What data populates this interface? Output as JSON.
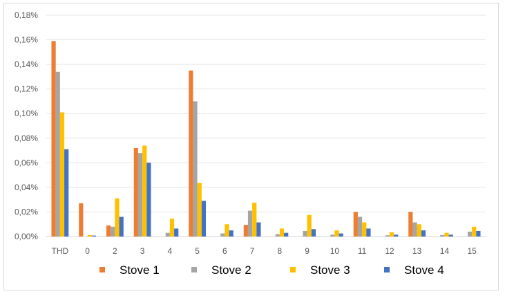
{
  "chart_data": {
    "type": "bar",
    "title": "",
    "xlabel": "",
    "ylabel": "",
    "categories": [
      "THD",
      "0",
      "2",
      "3",
      "4",
      "5",
      "6",
      "7",
      "8",
      "9",
      "10",
      "11",
      "12",
      "13",
      "14",
      "15"
    ],
    "ylim": [
      0,
      0.18
    ],
    "yticks": [
      0,
      0.02,
      0.04,
      0.06,
      0.08,
      0.1,
      0.12,
      0.14,
      0.16,
      0.18
    ],
    "ytick_labels": [
      "0,00%",
      "0,02%",
      "0,04%",
      "0,06%",
      "0,08%",
      "0,10%",
      "0,12%",
      "0,14%",
      "0,16%",
      "0,18%"
    ],
    "unit": "%",
    "grid": true,
    "legend_position": "bottom",
    "series": [
      {
        "name": "Stove 1",
        "color": "#ED7D31",
        "values": [
          0.159,
          0.027,
          0.009,
          0.072,
          0.0,
          0.135,
          0.0,
          0.0095,
          0.0,
          0.0,
          0.0,
          0.02,
          0.0,
          0.02,
          0.0,
          0.0
        ]
      },
      {
        "name": "Stove 2",
        "color": "#A5A5A5",
        "values": [
          0.134,
          0.0,
          0.008,
          0.068,
          0.003,
          0.11,
          0.0025,
          0.021,
          0.002,
          0.0045,
          0.0015,
          0.016,
          0.001,
          0.0115,
          0.0012,
          0.004
        ]
      },
      {
        "name": "Stove 3",
        "color": "#FFC000",
        "values": [
          0.101,
          0.0012,
          0.031,
          0.074,
          0.0145,
          0.0435,
          0.01,
          0.0275,
          0.0065,
          0.0175,
          0.005,
          0.0115,
          0.0035,
          0.01,
          0.003,
          0.008
        ]
      },
      {
        "name": "Stove 4",
        "color": "#4472C4",
        "values": [
          0.071,
          0.0008,
          0.016,
          0.06,
          0.0065,
          0.029,
          0.005,
          0.0115,
          0.003,
          0.006,
          0.0025,
          0.0065,
          0.0015,
          0.005,
          0.0015,
          0.0045
        ]
      }
    ]
  }
}
